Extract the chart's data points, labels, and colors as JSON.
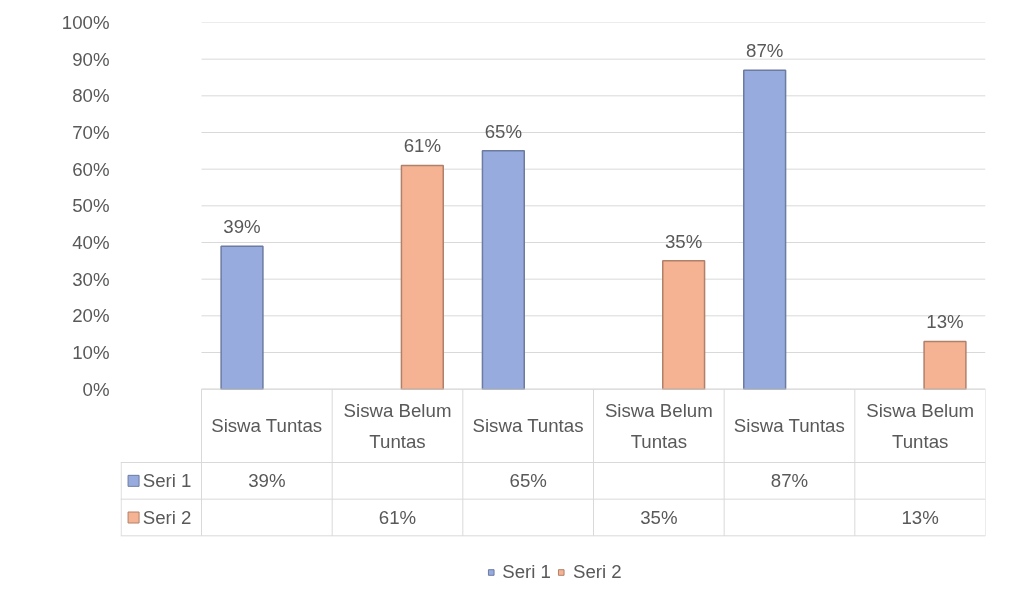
{
  "chart_data": {
    "type": "bar",
    "categories": [
      "Siswa Tuntas",
      "Siswa Belum Tuntas",
      "Siswa Tuntas",
      "Siswa Belum Tuntas",
      "Siswa Tuntas",
      "Siswa Belum Tuntas"
    ],
    "series": [
      {
        "name": "Seri 1",
        "color": "#97abdf",
        "values": [
          39,
          null,
          65,
          null,
          87,
          null
        ],
        "value_labels": [
          "39%",
          null,
          "65%",
          null,
          "87%",
          null
        ]
      },
      {
        "name": "Seri 2",
        "color": "#f5b393",
        "values": [
          null,
          61,
          null,
          35,
          null,
          13
        ],
        "value_labels": [
          null,
          "61%",
          null,
          "35%",
          null,
          "13%"
        ]
      }
    ],
    "ylim": [
      0,
      100
    ],
    "yticks": [
      {
        "value": 0,
        "label": "0%"
      },
      {
        "value": 10,
        "label": "10%"
      },
      {
        "value": 20,
        "label": "20%"
      },
      {
        "value": 30,
        "label": "30%"
      },
      {
        "value": 40,
        "label": "40%"
      },
      {
        "value": 50,
        "label": "50%"
      },
      {
        "value": 60,
        "label": "60%"
      },
      {
        "value": 70,
        "label": "70%"
      },
      {
        "value": 80,
        "label": "80%"
      },
      {
        "value": 90,
        "label": "90%"
      },
      {
        "value": 100,
        "label": "100%"
      }
    ],
    "grid": "y",
    "legend": "bottom"
  }
}
